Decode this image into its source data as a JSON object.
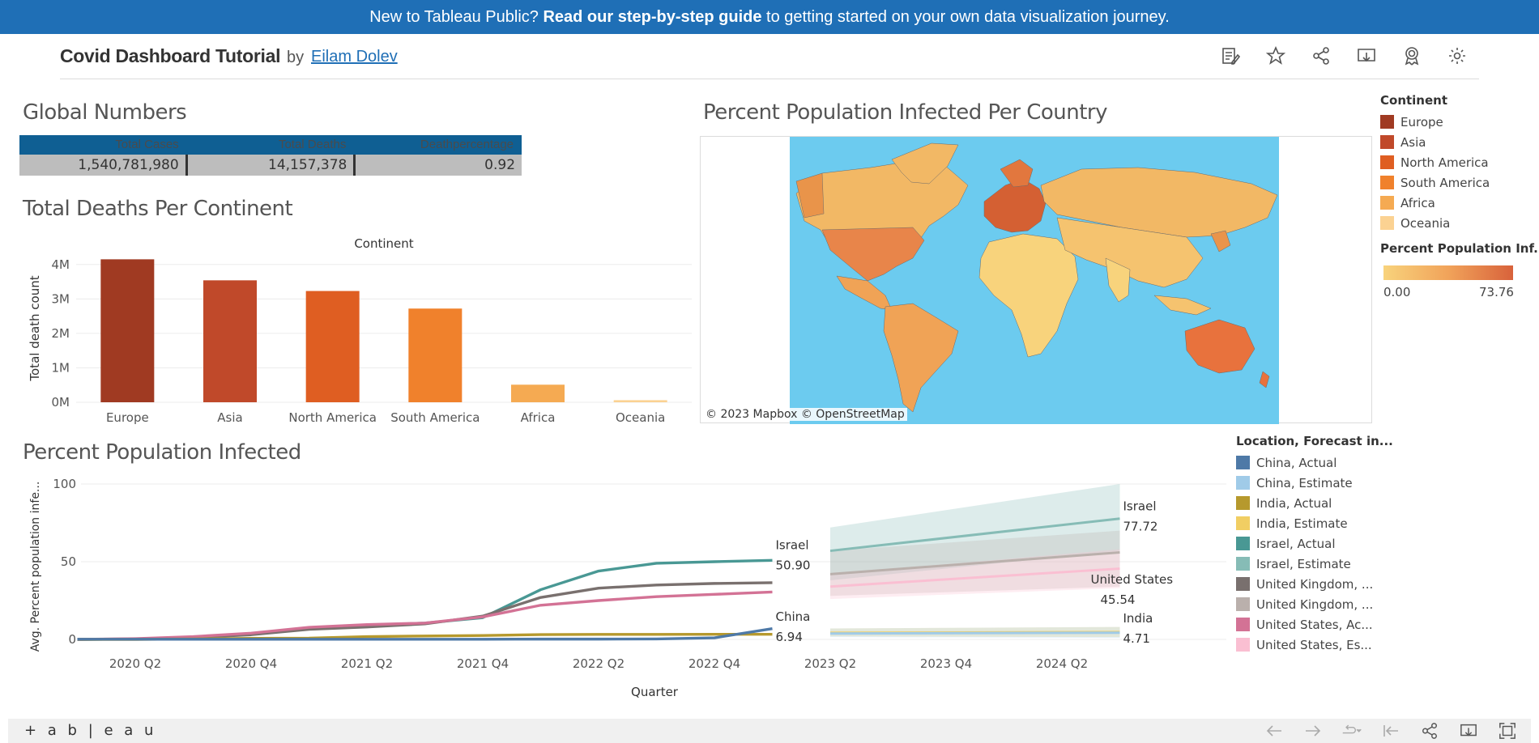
{
  "banner": {
    "prefix": "New to Tableau Public?",
    "link": "Read our step-by-step guide",
    "suffix": "to getting started on your own data visualization journey."
  },
  "header": {
    "title": "Covid Dashboard Tutorial",
    "by": "by",
    "author": "Eilam Dolev",
    "icons": [
      "edit-copy-icon",
      "star-icon",
      "share-icon",
      "download-icon",
      "award-icon",
      "settings-icon"
    ]
  },
  "global_numbers": {
    "title": "Global Numbers",
    "columns": [
      "Total Cases",
      "Total Deaths",
      "Deathpercentage"
    ],
    "values": [
      "1,540,781,980",
      "14,157,378",
      "0.92"
    ],
    "header_color": "#0f5f93"
  },
  "deaths_chart": {
    "title": "Total Deaths Per Continent"
  },
  "map": {
    "title": "Percent Population Infected Per Country",
    "credit": "© 2023 Mapbox © OpenStreetMap",
    "ocean_color": "#6ccbef"
  },
  "continent_legend": {
    "title": "Continent",
    "items": [
      {
        "label": "Europe",
        "color": "#a03a22"
      },
      {
        "label": "Asia",
        "color": "#c0492a"
      },
      {
        "label": "North America",
        "color": "#df5e22"
      },
      {
        "label": "South America",
        "color": "#f0812c"
      },
      {
        "label": "Africa",
        "color": "#f5aa52"
      },
      {
        "label": "Oceania",
        "color": "#fbd292"
      }
    ]
  },
  "gradient_legend": {
    "title": "Percent Population Inf...",
    "min": "0.00",
    "max": "73.76"
  },
  "line_chart": {
    "title": "Percent Population Infected"
  },
  "line_legend": {
    "title": "Location, Forecast in...",
    "items": [
      {
        "label": "China, Actual",
        "color": "#4e79a7"
      },
      {
        "label": "China, Estimate",
        "color": "#a0cbe8"
      },
      {
        "label": "India, Actual",
        "color": "#b6992d"
      },
      {
        "label": "India, Estimate",
        "color": "#f1ce63"
      },
      {
        "label": "Israel, Actual",
        "color": "#499894"
      },
      {
        "label": "Israel, Estimate",
        "color": "#86bcb6"
      },
      {
        "label": "United Kingdom, ...",
        "color": "#79706e"
      },
      {
        "label": "United Kingdom, ...",
        "color": "#bab0ac"
      },
      {
        "label": "United States, Ac...",
        "color": "#d37295"
      },
      {
        "label": "United States, Es...",
        "color": "#fabfd2"
      }
    ]
  },
  "chart_data": [
    {
      "type": "bar",
      "title": "Total Deaths Per Continent",
      "xlabel": "Continent",
      "ylabel": "Total death count",
      "categories": [
        "Europe",
        "Asia",
        "North America",
        "South America",
        "Africa",
        "Oceania"
      ],
      "values": [
        4150000,
        3540000,
        3230000,
        2720000,
        510000,
        60000
      ],
      "colors": [
        "#a03a22",
        "#c0492a",
        "#df5e22",
        "#f0812c",
        "#f5aa52",
        "#fbd292"
      ],
      "yticks": [
        "0M",
        "1M",
        "2M",
        "3M",
        "4M"
      ],
      "ylim": [
        0,
        4300000
      ]
    },
    {
      "type": "line",
      "title": "Percent Population Infected",
      "xlabel": "Quarter",
      "ylabel": "Avg. Percent population infe...",
      "ylim": [
        0,
        100
      ],
      "yticks": [
        "0",
        "50",
        "100"
      ],
      "xticks": [
        "2020 Q2",
        "2020 Q4",
        "2021 Q2",
        "2021 Q4",
        "2022 Q2",
        "2022 Q4",
        "2023 Q2",
        "2023 Q4",
        "2024 Q2"
      ],
      "x_actual": [
        "2020 Q1",
        "2020 Q2",
        "2020 Q3",
        "2020 Q4",
        "2021 Q1",
        "2021 Q2",
        "2021 Q3",
        "2021 Q4",
        "2022 Q1",
        "2022 Q2",
        "2022 Q3",
        "2022 Q4",
        "2023 Q1"
      ],
      "series": [
        {
          "name": "Israel, Actual",
          "color": "#499894",
          "values": [
            0,
            0.2,
            1.5,
            3.5,
            7,
            9,
            10.5,
            14,
            32,
            44,
            49,
            50,
            50.9
          ]
        },
        {
          "name": "United Kingdom, Actual",
          "color": "#79706e",
          "values": [
            0,
            0.3,
            1.2,
            3,
            6.5,
            8,
            10,
            15,
            27,
            33,
            35,
            36,
            36.5
          ]
        },
        {
          "name": "United States, Actual",
          "color": "#d37295",
          "values": [
            0,
            0.5,
            1.8,
            4,
            7.8,
            9.5,
            10.5,
            14.5,
            22,
            25,
            27.5,
            29,
            30.5
          ]
        },
        {
          "name": "India, Actual",
          "color": "#b6992d",
          "values": [
            0,
            0,
            0.3,
            0.7,
            0.8,
            1.8,
            2.2,
            2.5,
            3.1,
            3.2,
            3.2,
            3.3,
            3.3
          ]
        },
        {
          "name": "China, Actual",
          "color": "#4e79a7",
          "values": [
            0.1,
            0.1,
            0.1,
            0.1,
            0.1,
            0.1,
            0.1,
            0.1,
            0.2,
            0.2,
            0.3,
            1.0,
            6.94
          ]
        }
      ],
      "x_forecast": [
        "2023 Q2",
        "2024 Q3"
      ],
      "forecast": [
        {
          "name": "Israel, Estimate",
          "color": "#86bcb6",
          "values": [
            57,
            77.72
          ],
          "band": [
            [
              38,
              72
            ],
            [
              57,
              100
            ]
          ]
        },
        {
          "name": "United Kingdom, Estimate",
          "color": "#bab0ac",
          "values": [
            42,
            56
          ],
          "band": [
            [
              28,
              57
            ],
            [
              34,
              70
            ]
          ]
        },
        {
          "name": "United States, Estimate",
          "color": "#fabfd2",
          "values": [
            34,
            45.54
          ],
          "band": [
            [
              26,
              42
            ],
            [
              33,
              58
            ]
          ]
        },
        {
          "name": "India, Estimate",
          "color": "#f1ce63",
          "values": [
            4.2,
            4.71
          ],
          "band": [
            [
              2,
              7
            ],
            [
              1.5,
              8
            ]
          ]
        },
        {
          "name": "China, Estimate",
          "color": "#a0cbe8",
          "values": [
            3.8,
            4.3
          ],
          "band": [
            [
              1.5,
              7
            ],
            [
              1,
              8
            ]
          ]
        }
      ],
      "annotations": [
        {
          "label": "Israel",
          "value": "50.90"
        },
        {
          "label": "China",
          "value": "6.94"
        },
        {
          "label": "Israel",
          "value": "77.72"
        },
        {
          "label": "United States",
          "value": "45.54"
        },
        {
          "label": "India",
          "value": "4.71"
        }
      ]
    }
  ],
  "footer": {
    "brand": "+ a b | e a u",
    "icons": [
      "undo-icon",
      "redo-icon",
      "revert-icon",
      "reset-icon",
      "share-icon",
      "download-icon",
      "fullscreen-icon"
    ]
  }
}
